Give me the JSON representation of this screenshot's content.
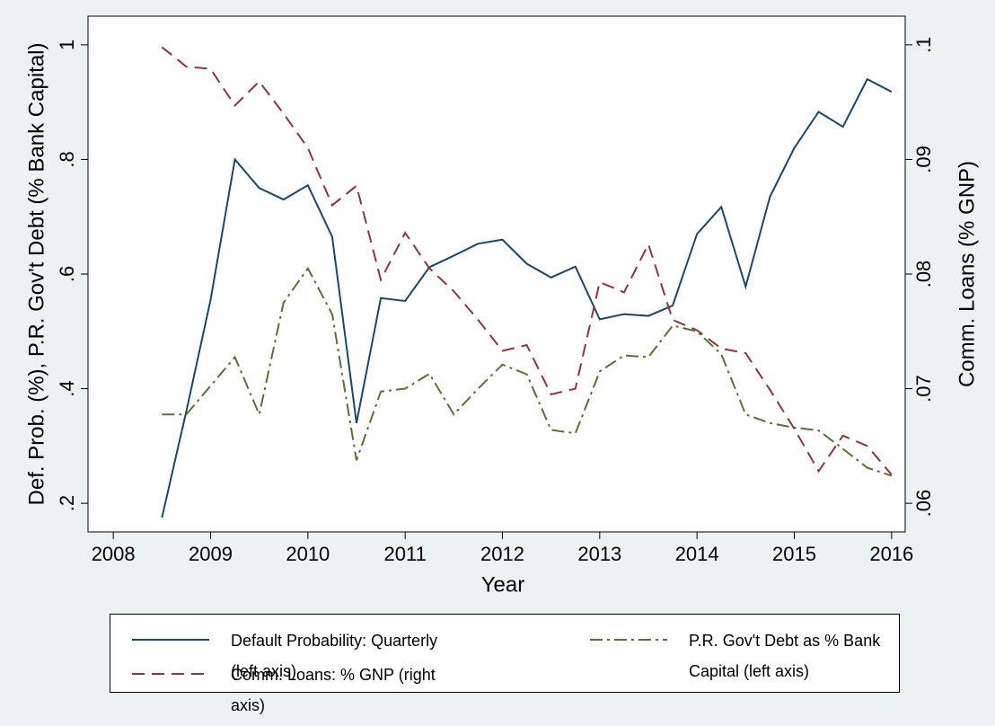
{
  "chart_data": {
    "type": "line",
    "x_label": "Year",
    "y_label": "Def. Prob. (%), P.R. Gov't Debt (% Bank Capital)",
    "y2_label": "Comm. Loans (% GNP)",
    "x": [
      2008.5,
      2008.75,
      2009,
      2009.25,
      2009.5,
      2009.75,
      2010,
      2010.25,
      2010.5,
      2010.75,
      2011,
      2011.25,
      2011.5,
      2011.75,
      2012,
      2012.25,
      2012.5,
      2012.75,
      2013,
      2013.25,
      2013.5,
      2013.75,
      2014,
      2014.25,
      2014.5,
      2014.75,
      2015,
      2015.25,
      2015.5,
      2015.75,
      2016
    ],
    "xlim": [
      2007.74,
      2016.14
    ],
    "xticks": [
      2008,
      2009,
      2010,
      2011,
      2012,
      2013,
      2014,
      2015,
      2016
    ],
    "ylim": [
      0.15,
      1.05
    ],
    "yticks": [
      {
        "value": 0.2,
        "label": ".2"
      },
      {
        "value": 0.4,
        "label": ".4"
      },
      {
        "value": 0.6,
        "label": ".6"
      },
      {
        "value": 0.8,
        "label": ".8"
      },
      {
        "value": 1,
        "label": "1"
      }
    ],
    "y2lim": [
      0.0575,
      0.1025
    ],
    "y2ticks": [
      {
        "value": 0.06,
        "label": ".06"
      },
      {
        "value": 0.07,
        "label": ".07"
      },
      {
        "value": 0.08,
        "label": ".08"
      },
      {
        "value": 0.09,
        "label": ".09"
      },
      {
        "value": 0.1,
        "label": ".1"
      }
    ],
    "grid": false,
    "series": [
      {
        "name": "Default Probability: Quarterly (left axis)",
        "color": "#1a476f",
        "dash": "solid",
        "values": [
          0.175,
          0.36,
          0.555,
          0.8,
          0.75,
          0.73,
          0.755,
          0.665,
          0.34,
          0.558,
          0.553,
          0.612,
          0.632,
          0.653,
          0.66,
          0.618,
          0.594,
          0.613,
          0.521,
          0.53,
          0.527,
          0.545,
          0.67,
          0.717,
          0.578,
          0.735,
          0.82,
          0.883,
          0.857,
          0.94,
          0.918
        ]
      },
      {
        "name": "P.R. Gov't Debt as % Bank Capital (left axis)",
        "color": "#55752f",
        "dash": "dashdot",
        "values": [
          0.355,
          0.355,
          0.405,
          0.455,
          0.355,
          0.55,
          0.61,
          0.53,
          0.275,
          0.395,
          0.4,
          0.426,
          0.355,
          0.4,
          0.442,
          0.425,
          0.328,
          0.322,
          0.43,
          0.458,
          0.455,
          0.51,
          0.5,
          0.46,
          0.355,
          0.34,
          0.332,
          0.327,
          0.295,
          0.262,
          0.248
        ]
      },
      {
        "name": "Comm. Loans: % GNP (right axis)",
        "color": "#90353b",
        "dash": "dashed",
        "axis": "y2",
        "values": [
          0.0998,
          0.0981,
          0.0979,
          0.0947,
          0.0968,
          0.094,
          0.091,
          0.086,
          0.0877,
          0.0795,
          0.0836,
          0.0805,
          0.0785,
          0.076,
          0.0733,
          0.0738,
          0.0695,
          0.07,
          0.0793,
          0.0784,
          0.0826,
          0.076,
          0.0751,
          0.0735,
          0.0731,
          0.0699,
          0.0665,
          0.0628,
          0.0659,
          0.065,
          0.0625
        ]
      }
    ]
  }
}
